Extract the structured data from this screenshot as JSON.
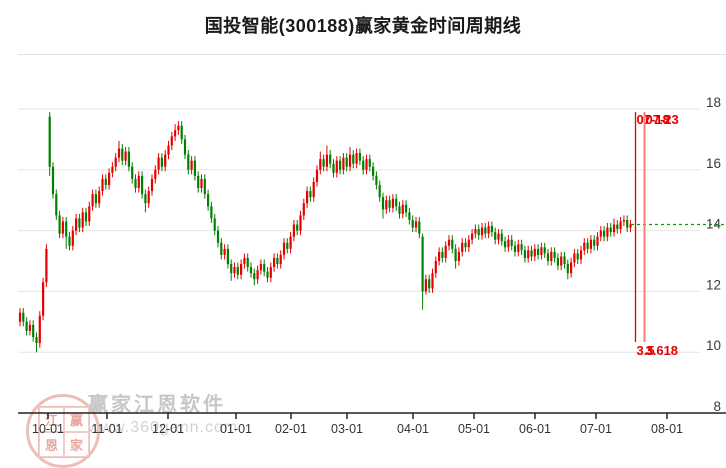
{
  "title": "国投智能(300188)赢家黄金时间周期线",
  "watermark": {
    "brand": "赢家江恩软件",
    "url": "www.360gann.com",
    "seal": [
      "江",
      "赢",
      "恩",
      "家"
    ]
  },
  "axes": {
    "y_labels": [
      "18",
      "16",
      "14",
      "12",
      "10",
      "8"
    ],
    "y_gridline_values": [
      18,
      16,
      14,
      12,
      10
    ],
    "x_labels": [
      "10-01",
      "11-01",
      "12-01",
      "01-01",
      "02-01",
      "03-01",
      "04-01",
      "05-01",
      "06-01",
      "07-01",
      "08-01"
    ]
  },
  "chart_data": {
    "type": "candlestick",
    "title": "国投智能(300188)赢家黄金时间周期线",
    "ylim": [
      8,
      18
    ],
    "grid": true,
    "up_color": "#e60000",
    "down_color": "#008000",
    "last_price": 14.2,
    "current_price_line_color": "#00a000",
    "cycle_line_color": "#e60000",
    "cycle_lines": [
      {
        "date": "07-18",
        "value": "3.5"
      },
      {
        "date": "07-23",
        "value": "3.618"
      }
    ],
    "ohlc_format": [
      "open",
      "close",
      "low",
      "high"
    ],
    "candles": [
      [
        11.0,
        11.3,
        10.85,
        11.45
      ],
      [
        11.3,
        11.0,
        10.85,
        11.45
      ],
      [
        11.0,
        10.7,
        10.55,
        11.15
      ],
      [
        10.7,
        10.9,
        10.55,
        11.05
      ],
      [
        10.9,
        10.5,
        10.35,
        11.05
      ],
      [
        10.5,
        10.3,
        10.0,
        10.65
      ],
      [
        10.3,
        11.2,
        10.15,
        11.35
      ],
      [
        11.2,
        12.3,
        11.05,
        12.45
      ],
      [
        12.3,
        13.4,
        12.15,
        13.55
      ],
      [
        17.75,
        16.1,
        15.8,
        17.9
      ],
      [
        16.1,
        15.2,
        15.05,
        16.25
      ],
      [
        15.2,
        14.5,
        14.35,
        15.35
      ],
      [
        14.5,
        13.9,
        13.75,
        14.65
      ],
      [
        13.9,
        14.3,
        13.75,
        14.45
      ],
      [
        14.3,
        13.8,
        13.4,
        14.45
      ],
      [
        13.8,
        13.5,
        13.35,
        13.95
      ],
      [
        13.5,
        14.0,
        13.35,
        14.15
      ],
      [
        14.0,
        14.4,
        13.85,
        14.55
      ],
      [
        14.4,
        14.1,
        13.95,
        14.55
      ],
      [
        14.1,
        14.6,
        13.95,
        14.75
      ],
      [
        14.6,
        14.3,
        14.15,
        14.75
      ],
      [
        14.3,
        14.8,
        14.15,
        14.95
      ],
      [
        14.8,
        15.2,
        14.65,
        15.35
      ],
      [
        15.2,
        14.9,
        14.75,
        15.35
      ],
      [
        14.9,
        15.3,
        14.75,
        15.45
      ],
      [
        15.3,
        15.7,
        15.15,
        15.85
      ],
      [
        15.7,
        15.5,
        15.35,
        15.85
      ],
      [
        15.5,
        15.9,
        15.35,
        16.05
      ],
      [
        15.9,
        16.1,
        15.75,
        16.25
      ],
      [
        16.1,
        16.4,
        15.95,
        16.55
      ],
      [
        16.4,
        16.7,
        16.25,
        16.95
      ],
      [
        16.7,
        16.3,
        16.15,
        16.85
      ],
      [
        16.3,
        16.6,
        16.15,
        16.75
      ],
      [
        16.6,
        16.1,
        15.95,
        16.75
      ],
      [
        16.1,
        15.7,
        15.55,
        16.25
      ],
      [
        15.7,
        15.4,
        15.25,
        15.85
      ],
      [
        15.4,
        15.8,
        15.25,
        15.95
      ],
      [
        15.8,
        15.2,
        15.05,
        15.95
      ],
      [
        15.2,
        14.9,
        14.6,
        15.35
      ],
      [
        14.9,
        15.3,
        14.75,
        15.45
      ],
      [
        15.3,
        15.7,
        15.15,
        15.85
      ],
      [
        15.7,
        16.0,
        15.55,
        16.15
      ],
      [
        16.0,
        16.4,
        15.85,
        16.55
      ],
      [
        16.4,
        16.1,
        15.95,
        16.55
      ],
      [
        16.1,
        16.5,
        15.95,
        16.65
      ],
      [
        16.5,
        16.8,
        16.35,
        16.95
      ],
      [
        16.8,
        17.1,
        16.65,
        17.25
      ],
      [
        17.1,
        17.3,
        16.95,
        17.5
      ],
      [
        17.3,
        17.45,
        17.15,
        17.6
      ],
      [
        17.45,
        17.0,
        16.85,
        17.6
      ],
      [
        17.0,
        16.5,
        16.35,
        17.15
      ],
      [
        16.5,
        16.0,
        15.85,
        16.65
      ],
      [
        16.0,
        16.3,
        15.85,
        16.45
      ],
      [
        16.3,
        15.8,
        15.65,
        16.45
      ],
      [
        15.8,
        15.4,
        15.25,
        15.95
      ],
      [
        15.4,
        15.7,
        15.25,
        15.85
      ],
      [
        15.7,
        15.2,
        15.05,
        15.85
      ],
      [
        15.2,
        14.8,
        14.65,
        15.35
      ],
      [
        14.8,
        14.4,
        14.25,
        14.95
      ],
      [
        14.4,
        14.0,
        13.85,
        14.55
      ],
      [
        14.0,
        13.6,
        13.45,
        14.15
      ],
      [
        13.6,
        13.2,
        13.05,
        13.75
      ],
      [
        13.2,
        13.4,
        13.05,
        13.55
      ],
      [
        13.4,
        12.9,
        12.75,
        13.55
      ],
      [
        12.9,
        12.6,
        12.35,
        13.05
      ],
      [
        12.6,
        12.8,
        12.45,
        12.95
      ],
      [
        12.8,
        12.55,
        12.4,
        12.95
      ],
      [
        12.55,
        12.9,
        12.4,
        13.05
      ],
      [
        12.9,
        13.1,
        12.75,
        13.25
      ],
      [
        13.1,
        12.8,
        12.65,
        13.25
      ],
      [
        12.8,
        12.6,
        12.45,
        12.95
      ],
      [
        12.6,
        12.4,
        12.2,
        12.75
      ],
      [
        12.4,
        12.7,
        12.25,
        12.85
      ],
      [
        12.7,
        12.9,
        12.55,
        13.05
      ],
      [
        12.9,
        12.65,
        12.5,
        13.05
      ],
      [
        12.65,
        12.45,
        12.3,
        12.8
      ],
      [
        12.45,
        12.8,
        12.3,
        12.95
      ],
      [
        12.8,
        13.1,
        12.65,
        13.25
      ],
      [
        13.1,
        12.9,
        12.75,
        13.25
      ],
      [
        12.9,
        13.2,
        12.75,
        13.35
      ],
      [
        13.2,
        13.6,
        13.05,
        13.75
      ],
      [
        13.6,
        13.4,
        13.25,
        13.75
      ],
      [
        13.4,
        13.8,
        13.25,
        13.95
      ],
      [
        13.8,
        14.2,
        13.65,
        14.35
      ],
      [
        14.2,
        14.0,
        13.85,
        14.35
      ],
      [
        14.0,
        14.5,
        13.85,
        14.65
      ],
      [
        14.5,
        14.9,
        14.35,
        15.05
      ],
      [
        14.9,
        15.3,
        14.75,
        15.45
      ],
      [
        15.3,
        15.1,
        14.95,
        15.45
      ],
      [
        15.1,
        15.6,
        14.95,
        15.75
      ],
      [
        15.6,
        16.0,
        15.45,
        16.15
      ],
      [
        16.0,
        16.35,
        15.85,
        16.6
      ],
      [
        16.35,
        16.1,
        15.95,
        16.5
      ],
      [
        16.1,
        16.5,
        15.95,
        16.8
      ],
      [
        16.5,
        16.2,
        16.05,
        16.65
      ],
      [
        16.2,
        15.9,
        15.75,
        16.35
      ],
      [
        15.9,
        16.3,
        15.75,
        16.45
      ],
      [
        16.3,
        16.0,
        15.85,
        16.45
      ],
      [
        16.0,
        16.4,
        15.85,
        16.55
      ],
      [
        16.4,
        16.1,
        15.95,
        16.55
      ],
      [
        16.1,
        16.5,
        15.95,
        16.75
      ],
      [
        16.5,
        16.2,
        16.05,
        16.65
      ],
      [
        16.2,
        16.55,
        16.05,
        16.7
      ],
      [
        16.55,
        16.3,
        16.15,
        16.7
      ],
      [
        16.3,
        16.0,
        15.85,
        16.45
      ],
      [
        16.0,
        16.35,
        15.85,
        16.5
      ],
      [
        16.35,
        16.1,
        15.95,
        16.5
      ],
      [
        16.1,
        15.8,
        15.65,
        16.25
      ],
      [
        15.8,
        15.5,
        15.35,
        15.95
      ],
      [
        15.5,
        15.1,
        14.95,
        15.65
      ],
      [
        15.1,
        14.7,
        14.4,
        15.25
      ],
      [
        14.7,
        15.0,
        14.55,
        15.15
      ],
      [
        15.0,
        14.75,
        14.6,
        15.15
      ],
      [
        14.75,
        15.05,
        14.6,
        15.2
      ],
      [
        15.05,
        14.8,
        14.65,
        15.2
      ],
      [
        14.8,
        14.55,
        14.4,
        14.95
      ],
      [
        14.55,
        14.85,
        14.4,
        15.0
      ],
      [
        14.85,
        14.6,
        14.45,
        15.0
      ],
      [
        14.6,
        14.35,
        14.2,
        14.75
      ],
      [
        14.35,
        14.1,
        13.95,
        14.5
      ],
      [
        14.1,
        14.3,
        13.95,
        14.45
      ],
      [
        14.3,
        13.9,
        13.75,
        14.45
      ],
      [
        13.8,
        12.0,
        11.4,
        13.9
      ],
      [
        12.0,
        12.4,
        11.9,
        12.55
      ],
      [
        12.4,
        12.1,
        11.95,
        12.55
      ],
      [
        12.1,
        12.6,
        11.95,
        12.75
      ],
      [
        12.6,
        13.0,
        12.45,
        13.15
      ],
      [
        13.0,
        13.3,
        12.85,
        13.45
      ],
      [
        13.3,
        13.1,
        12.95,
        13.45
      ],
      [
        13.1,
        13.5,
        12.95,
        13.65
      ],
      [
        13.5,
        13.7,
        13.35,
        13.85
      ],
      [
        13.7,
        13.4,
        13.25,
        13.85
      ],
      [
        13.4,
        13.0,
        12.75,
        13.55
      ],
      [
        13.0,
        13.3,
        12.85,
        13.45
      ],
      [
        13.3,
        13.6,
        13.15,
        13.75
      ],
      [
        13.6,
        13.45,
        13.3,
        13.75
      ],
      [
        13.45,
        13.7,
        13.3,
        13.85
      ],
      [
        13.7,
        13.9,
        13.55,
        14.05
      ],
      [
        13.9,
        14.05,
        13.75,
        14.2
      ],
      [
        14.05,
        13.85,
        13.7,
        14.2
      ],
      [
        13.85,
        14.1,
        13.7,
        14.25
      ],
      [
        14.1,
        13.9,
        13.75,
        14.25
      ],
      [
        13.9,
        14.15,
        13.75,
        14.3
      ],
      [
        14.15,
        13.95,
        13.8,
        14.3
      ],
      [
        13.95,
        13.7,
        13.55,
        14.1
      ],
      [
        13.7,
        13.9,
        13.55,
        14.05
      ],
      [
        13.9,
        13.65,
        13.5,
        14.05
      ],
      [
        13.65,
        13.45,
        13.3,
        13.8
      ],
      [
        13.45,
        13.7,
        13.3,
        13.85
      ],
      [
        13.7,
        13.5,
        13.35,
        13.85
      ],
      [
        13.5,
        13.3,
        13.15,
        13.65
      ],
      [
        13.3,
        13.55,
        13.15,
        13.7
      ],
      [
        13.55,
        13.35,
        13.2,
        13.7
      ],
      [
        13.35,
        13.1,
        12.95,
        13.5
      ],
      [
        13.1,
        13.35,
        12.95,
        13.5
      ],
      [
        13.35,
        13.15,
        13.0,
        13.5
      ],
      [
        13.15,
        13.4,
        13.0,
        13.55
      ],
      [
        13.4,
        13.2,
        13.05,
        13.55
      ],
      [
        13.2,
        13.45,
        13.05,
        13.6
      ],
      [
        13.45,
        13.25,
        13.1,
        13.6
      ],
      [
        13.25,
        13.0,
        12.85,
        13.4
      ],
      [
        13.0,
        13.3,
        12.85,
        13.45
      ],
      [
        13.3,
        13.1,
        12.95,
        13.45
      ],
      [
        13.1,
        12.85,
        12.7,
        13.25
      ],
      [
        12.85,
        13.15,
        12.7,
        13.3
      ],
      [
        13.15,
        12.9,
        12.75,
        13.3
      ],
      [
        12.9,
        12.6,
        12.4,
        13.05
      ],
      [
        12.6,
        12.95,
        12.45,
        13.1
      ],
      [
        12.95,
        13.25,
        12.8,
        13.4
      ],
      [
        13.25,
        13.05,
        12.9,
        13.4
      ],
      [
        13.05,
        13.35,
        12.9,
        13.5
      ],
      [
        13.35,
        13.6,
        13.2,
        13.75
      ],
      [
        13.6,
        13.4,
        13.25,
        13.75
      ],
      [
        13.4,
        13.7,
        13.25,
        13.85
      ],
      [
        13.7,
        13.5,
        13.35,
        13.85
      ],
      [
        13.5,
        13.8,
        13.35,
        13.95
      ],
      [
        13.8,
        14.0,
        13.65,
        14.15
      ],
      [
        14.0,
        13.8,
        13.65,
        14.15
      ],
      [
        13.8,
        14.1,
        13.65,
        14.25
      ],
      [
        14.1,
        13.95,
        13.8,
        14.25
      ],
      [
        13.95,
        14.2,
        13.8,
        14.4
      ],
      [
        14.2,
        14.05,
        13.9,
        14.35
      ],
      [
        14.05,
        14.3,
        13.9,
        14.45
      ],
      [
        14.3,
        14.35,
        14.15,
        14.5
      ],
      [
        14.35,
        14.1,
        13.95,
        14.5
      ],
      [
        14.1,
        14.2,
        13.95,
        14.35
      ]
    ]
  }
}
